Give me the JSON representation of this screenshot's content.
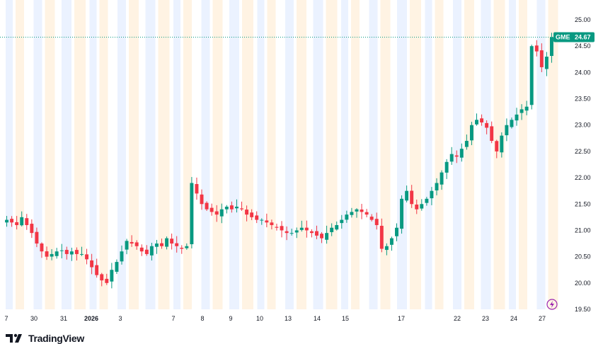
{
  "chart_data": {
    "type": "candlestick",
    "symbol": "GME",
    "last_price": "24.67",
    "y_ticks": [
      "25.00",
      "24.50",
      "24.00",
      "23.50",
      "23.00",
      "22.50",
      "22.00",
      "21.50",
      "21.00",
      "20.50",
      "20.00",
      "19.50"
    ],
    "ylim": [
      19.5,
      25.0
    ],
    "x_ticks": [
      {
        "label": "7",
        "bold": false
      },
      {
        "label": "30",
        "bold": false
      },
      {
        "label": "31",
        "bold": false
      },
      {
        "label": "2026",
        "bold": true
      },
      {
        "label": "3",
        "bold": false
      },
      {
        "label": "7",
        "bold": false
      },
      {
        "label": "8",
        "bold": false
      },
      {
        "label": "9",
        "bold": false
      },
      {
        "label": "10",
        "bold": false
      },
      {
        "label": "13",
        "bold": false
      },
      {
        "label": "14",
        "bold": false
      },
      {
        "label": "15",
        "bold": false
      },
      {
        "label": "17",
        "bold": false
      },
      {
        "label": "22",
        "bold": false
      },
      {
        "label": "23",
        "bold": false
      },
      {
        "label": "24",
        "bold": false
      },
      {
        "label": "27",
        "bold": false
      }
    ],
    "close_path": [
      [
        0,
        21.2
      ],
      [
        1,
        21.15
      ],
      [
        2,
        21.1
      ],
      [
        3,
        21.25
      ],
      [
        4,
        21.1
      ],
      [
        5,
        20.95
      ],
      [
        6,
        20.75
      ],
      [
        7,
        20.6
      ],
      [
        8,
        20.5
      ],
      [
        9,
        20.55
      ],
      [
        10,
        20.6
      ],
      [
        11,
        20.62
      ],
      [
        12,
        20.55
      ],
      [
        13,
        20.6
      ],
      [
        14,
        20.55
      ],
      [
        15,
        20.55
      ],
      [
        16,
        20.45
      ],
      [
        17,
        20.3
      ],
      [
        18,
        20.15
      ],
      [
        19,
        20.05
      ],
      [
        20,
        20.0
      ],
      [
        21,
        20.25
      ],
      [
        22,
        20.4
      ],
      [
        23,
        20.6
      ],
      [
        24,
        20.8
      ],
      [
        25,
        20.75
      ],
      [
        26,
        20.7
      ],
      [
        27,
        20.6
      ],
      [
        28,
        20.55
      ],
      [
        29,
        20.7
      ],
      [
        30,
        20.75
      ],
      [
        31,
        20.7
      ],
      [
        32,
        20.85
      ],
      [
        33,
        20.75
      ],
      [
        34,
        20.7
      ],
      [
        35,
        20.65
      ],
      [
        36,
        20.7
      ],
      [
        37,
        21.9
      ],
      [
        38,
        21.7
      ],
      [
        39,
        21.5
      ],
      [
        40,
        21.4
      ],
      [
        41,
        21.35
      ],
      [
        42,
        21.3
      ],
      [
        43,
        21.4
      ],
      [
        44,
        21.45
      ],
      [
        45,
        21.4
      ],
      [
        46,
        21.45
      ],
      [
        47,
        21.4
      ],
      [
        48,
        21.3
      ],
      [
        49,
        21.25
      ],
      [
        50,
        21.2
      ],
      [
        51,
        21.2
      ],
      [
        52,
        21.15
      ],
      [
        53,
        21.1
      ],
      [
        54,
        21.05
      ],
      [
        55,
        21.0
      ],
      [
        56,
        20.95
      ],
      [
        57,
        20.95
      ],
      [
        58,
        21.0
      ],
      [
        59,
        21.05
      ],
      [
        60,
        21.0
      ],
      [
        61,
        20.95
      ],
      [
        62,
        20.9
      ],
      [
        63,
        20.85
      ],
      [
        64,
        20.95
      ],
      [
        65,
        21.05
      ],
      [
        66,
        21.1
      ],
      [
        67,
        21.2
      ],
      [
        68,
        21.3
      ],
      [
        69,
        21.35
      ],
      [
        70,
        21.4
      ],
      [
        71,
        21.35
      ],
      [
        72,
        21.3
      ],
      [
        73,
        21.2
      ],
      [
        74,
        21.1
      ],
      [
        75,
        20.65
      ],
      [
        76,
        20.7
      ],
      [
        77,
        20.85
      ],
      [
        78,
        21.05
      ],
      [
        79,
        21.6
      ],
      [
        80,
        21.75
      ],
      [
        81,
        21.5
      ],
      [
        82,
        21.4
      ],
      [
        83,
        21.5
      ],
      [
        84,
        21.6
      ],
      [
        85,
        21.75
      ],
      [
        86,
        21.9
      ],
      [
        87,
        22.1
      ],
      [
        88,
        22.3
      ],
      [
        89,
        22.45
      ],
      [
        90,
        22.4
      ],
      [
        91,
        22.55
      ],
      [
        92,
        22.7
      ],
      [
        93,
        23.0
      ],
      [
        94,
        23.1
      ],
      [
        95,
        23.05
      ],
      [
        96,
        22.95
      ],
      [
        97,
        22.7
      ],
      [
        98,
        22.5
      ],
      [
        99,
        22.8
      ],
      [
        100,
        23.0
      ],
      [
        101,
        23.1
      ],
      [
        102,
        23.2
      ],
      [
        103,
        23.3
      ],
      [
        104,
        23.35
      ],
      [
        105,
        24.5
      ],
      [
        106,
        24.4
      ],
      [
        107,
        24.1
      ],
      [
        108,
        24.3
      ],
      [
        109,
        24.67
      ]
    ],
    "x_count": 110,
    "grid": false,
    "session_shading": true
  },
  "branding": {
    "name": "TradingView"
  },
  "colors": {
    "up": "#089981",
    "down": "#f23645",
    "price_line": "#089981",
    "badge_bg": "#089981",
    "shade_blue": "#ebf2ff",
    "shade_orange": "#fff3e3",
    "lightning": "#9c27b0"
  }
}
